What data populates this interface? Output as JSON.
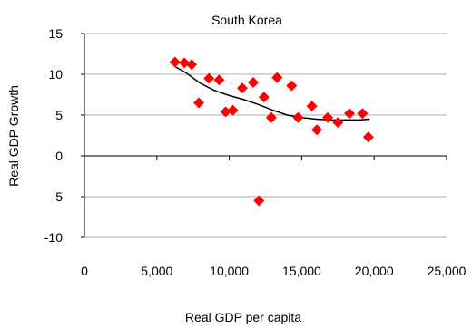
{
  "chart_data": {
    "type": "scatter",
    "title": "South Korea",
    "xlabel": "Real GDP per capita",
    "ylabel": "Real GDP Growth",
    "xlim": [
      0,
      25000
    ],
    "ylim": [
      -10,
      15
    ],
    "x_ticks": [
      0,
      5000,
      10000,
      15000,
      20000,
      25000
    ],
    "x_tick_labels": [
      "0",
      "5,000",
      "10,000",
      "15,000",
      "20,000",
      "25,000"
    ],
    "y_ticks": [
      -10,
      -5,
      0,
      5,
      10,
      15
    ],
    "y_tick_labels": [
      "-10",
      "-5",
      "0",
      "5",
      "10",
      "15"
    ],
    "grid": "horizontal",
    "colors": {
      "points": "#ff0000",
      "trend": "#000000"
    },
    "series": [
      {
        "marker": "diamond",
        "points": [
          [
            6250,
            11.5
          ],
          [
            6900,
            11.4
          ],
          [
            7400,
            11.2
          ],
          [
            7900,
            6.5
          ],
          [
            8600,
            9.5
          ],
          [
            9300,
            9.3
          ],
          [
            9750,
            5.4
          ],
          [
            10250,
            5.6
          ],
          [
            10900,
            8.3
          ],
          [
            11650,
            9.0
          ],
          [
            12400,
            7.2
          ],
          [
            12050,
            -5.5
          ],
          [
            12900,
            4.7
          ],
          [
            13300,
            9.6
          ],
          [
            14300,
            8.6
          ],
          [
            14750,
            4.7
          ],
          [
            15700,
            6.1
          ],
          [
            16050,
            3.2
          ],
          [
            16800,
            4.7
          ],
          [
            17500,
            4.1
          ],
          [
            18300,
            5.2
          ],
          [
            19200,
            5.2
          ],
          [
            19600,
            2.3
          ]
        ]
      }
    ],
    "trendline": [
      [
        6300,
        10.9
      ],
      [
        7000,
        10.2
      ],
      [
        8000,
        8.9
      ],
      [
        9000,
        8.0
      ],
      [
        10000,
        7.4
      ],
      [
        11000,
        6.9
      ],
      [
        12000,
        6.3
      ],
      [
        13000,
        5.6
      ],
      [
        14000,
        5.0
      ],
      [
        15000,
        4.7
      ],
      [
        16000,
        4.5
      ],
      [
        17000,
        4.4
      ],
      [
        18000,
        4.4
      ],
      [
        19000,
        4.4
      ],
      [
        19700,
        4.5
      ]
    ]
  }
}
